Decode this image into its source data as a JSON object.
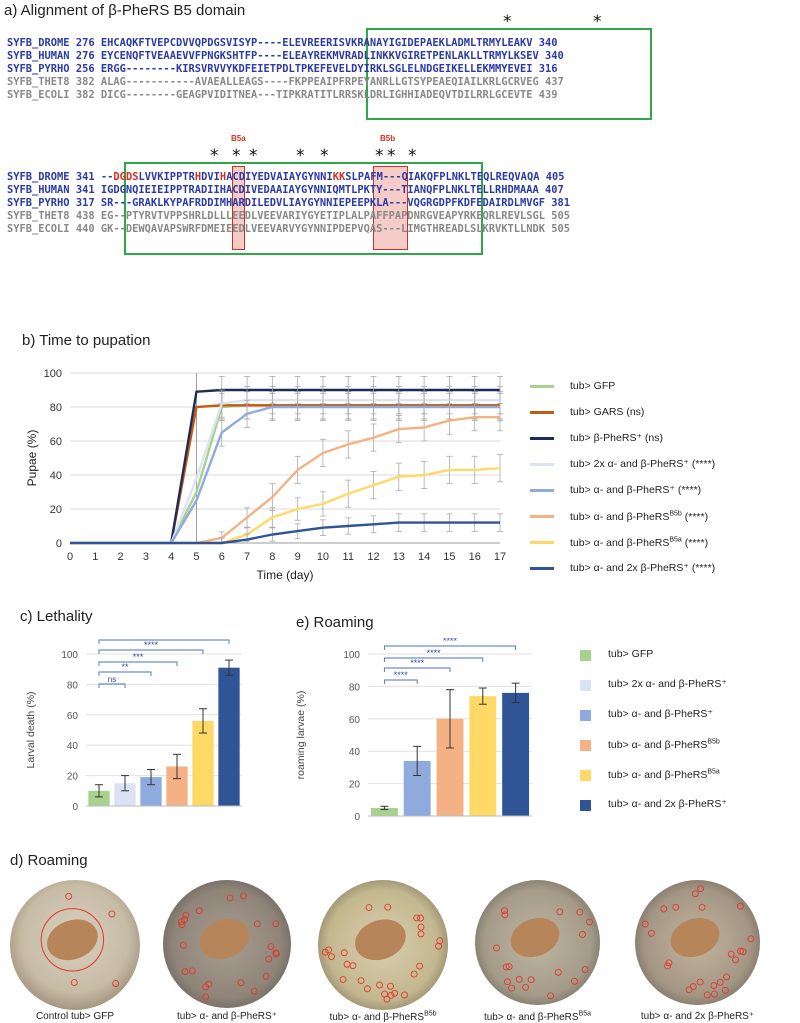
{
  "panel_a": {
    "title": "a) Alignment of β-PheRS B5 domain",
    "block1": [
      {
        "name": "SYFB_DROME",
        "start": "276",
        "seq": "EHCAQKFTVEPCDVVQPDGSVISYP----ELEVREERISVKRANAYIGIDEPAEKLADMLTRMYLEAKV",
        "end": "340",
        "color": "blue"
      },
      {
        "name": "SYFB_HUMAN",
        "start": "276",
        "seq": "EYCENQFTVEAAEVVFPNGKSHTFP----ELEAYREKMVRADLINKKVGIRETPENLAKLLTRMYLKSEV",
        "end": "340",
        "color": "blue"
      },
      {
        "name": "SYFB_PYRHO",
        "start": "256",
        "seq": "ERGG--------KIRSVRVVYKDFEIETPDLTPKEFEVELDYIRKLSGLELNDGEIKELLEKMMYEVEI",
        "end": "316",
        "color": "blue"
      },
      {
        "name": "SYFB_THET8",
        "start": "382",
        "seq": "ALAG-----------AVAEALLEAGS----FKPPEAIPFRPEYANRLLGTSYPEAEQIAILKRLGCRVEG",
        "end": "437",
        "color": "grey"
      },
      {
        "name": "SYFB_ECOLI",
        "start": "382",
        "seq": "DICG--------GEAGPVIDITNEA---TIPKRATITLRRSKLDRLIGHHIADEQVTDILRRLGCEVTE",
        "end": "439",
        "color": "grey"
      }
    ],
    "block2": [
      {
        "name": "SYFB_DROME",
        "start": "341",
        "seq": "--DGDSLVVKIPPTRHDVIHACDIYEDVAIAYGYNNIKKSLPAFM---QIAKQFPLNKLTEQLREQVAQA",
        "end": "405",
        "color": "blue"
      },
      {
        "name": "SYFB_HUMAN",
        "start": "341",
        "seq": "IGDGNQIEIEIPPTRADIIHACDIVEDAAIAYGYNNIQMTLPKTY---TIANQFPLNKLTELLRHDMAAA",
        "end": "407",
        "color": "blue"
      },
      {
        "name": "SYFB_PYRHO",
        "start": "317",
        "seq": "SR---GRAKLKYPAFRDDIMHARDILEDVLIAYGYNNIEPEEPKLA---VQGRGDPFKDFEDAIRDLMVGF",
        "end": "381",
        "color": "blue"
      },
      {
        "name": "SYFB_THET8",
        "start": "438",
        "seq": "EG--PTYRVTVPPSHRLDLLLEEDLVEEVARIYGYETIPLALPAFFPAPDNRGVEAPYRKEQRLREVLSGL",
        "end": "505",
        "color": "grey"
      },
      {
        "name": "SYFB_ECOLI",
        "start": "440",
        "seq": "GK--DEWQAVAPSWRFDMEIEEDLVEEVARVYGYNNIPDEPVQAS---LIMGTHREADLSLKRVKTLLNDK",
        "end": "505",
        "color": "grey"
      }
    ],
    "b5a_label": "B5a",
    "b5b_label": "B5b",
    "star": "*"
  },
  "panel_b": {
    "title": "b) Time to pupation",
    "chart_data": {
      "type": "line",
      "xlabel": "Time (day)",
      "ylabel": "Pupae (%)",
      "xlim": [
        0,
        17
      ],
      "ylim": [
        0,
        100
      ],
      "x": [
        0,
        1,
        2,
        3,
        4,
        5,
        6,
        7,
        8,
        9,
        10,
        11,
        12,
        13,
        14,
        15,
        16,
        17
      ],
      "series": [
        {
          "name": "tub> GFP",
          "color": "#a9d18e",
          "values": [
            0,
            0,
            0,
            0,
            0,
            30,
            80,
            81,
            81,
            81,
            81,
            81,
            81,
            81,
            81,
            81,
            81,
            81
          ]
        },
        {
          "name": "tub> GARS (ns)",
          "color": "#c55a11",
          "values": [
            0,
            0,
            0,
            0,
            0,
            80,
            81,
            81,
            81,
            81,
            81,
            81,
            81,
            81,
            81,
            81,
            81,
            81
          ]
        },
        {
          "name": "tub> β-PheRS⁺ (ns)",
          "color": "#1f2a5c",
          "values": [
            0,
            0,
            0,
            0,
            0,
            89,
            90,
            90,
            90,
            90,
            90,
            90,
            90,
            90,
            90,
            90,
            90,
            90
          ]
        },
        {
          "name": "tub> 2x α- and β-PheRS⁺ (****)",
          "color": "#dae3f3",
          "values": [
            0,
            0,
            0,
            0,
            0,
            38,
            82,
            84,
            84,
            84,
            84,
            84,
            84,
            84,
            84,
            84,
            84,
            84
          ]
        },
        {
          "name": "tub> α- and β-PheRS⁺ (****)",
          "color": "#8faadc",
          "values": [
            0,
            0,
            0,
            0,
            0,
            25,
            65,
            76,
            80,
            80,
            80,
            80,
            80,
            80,
            80,
            80,
            80,
            80
          ]
        },
        {
          "name": "tub> α- and β-PheRS^B5b (****)",
          "color": "#f4b183",
          "values": [
            0,
            0,
            0,
            0,
            0,
            0,
            3,
            15,
            27,
            43,
            53,
            58,
            62,
            67,
            68,
            72,
            74,
            74
          ]
        },
        {
          "name": "tub> α- and β-PheRS^B5a (****)",
          "color": "#ffd966",
          "values": [
            0,
            0,
            0,
            0,
            0,
            0,
            0,
            5,
            15,
            20,
            23,
            29,
            34,
            39,
            40,
            43,
            43,
            44
          ]
        },
        {
          "name": "tub> α- and 2x β-PheRS⁺ (****)",
          "color": "#2f5597",
          "values": [
            0,
            0,
            0,
            0,
            0,
            0,
            0,
            2,
            5,
            7,
            9,
            10,
            11,
            12,
            12,
            12,
            12,
            12
          ]
        }
      ]
    }
  },
  "panel_c": {
    "title": "c) Lethality",
    "chart_data": {
      "type": "bar",
      "ylabel": "Larval death (%)",
      "ylim": [
        0,
        100
      ],
      "categories": [
        "tub> GFP",
        "tub> 2x α- and β-PheRS⁺",
        "tub> α- and β-PheRS⁺",
        "tub> α- and β-PheRS^B5b",
        "tub> α- and β-PheRS^B5a",
        "tub> α- and 2x β-PheRS⁺"
      ],
      "values": [
        10,
        15,
        19,
        26,
        56,
        91
      ],
      "errors": [
        4,
        5,
        5,
        8,
        8,
        5
      ],
      "colors": [
        "#a9d18e",
        "#dae3f3",
        "#8faadc",
        "#f4b183",
        "#ffd966",
        "#2f5597"
      ],
      "significance": [
        "ns",
        "**",
        "***",
        "****",
        "****"
      ]
    }
  },
  "panel_e": {
    "title": "e) Roaming",
    "chart_data": {
      "type": "bar",
      "ylabel": "roaming larvae (%)",
      "ylim": [
        0,
        100
      ],
      "categories": [
        "tub> GFP",
        "tub> α- and β-PheRS⁺",
        "tub> α- and β-PheRS^B5b",
        "tub> α- and β-PheRS^B5a",
        "tub> α- and 2x β-PheRS⁺"
      ],
      "values": [
        5,
        34,
        60,
        74,
        76
      ],
      "errors": [
        1,
        9,
        18,
        5,
        6
      ],
      "colors": [
        "#a9d18e",
        "#8faadc",
        "#f4b183",
        "#ffd966",
        "#2f5597"
      ],
      "significance": [
        "****",
        "****",
        "****",
        "****"
      ]
    }
  },
  "bar_legend": [
    {
      "label": "tub> GFP",
      "color": "#a9d18e"
    },
    {
      "label": "tub> 2x α- and β-PheRS⁺",
      "color": "#dae3f3"
    },
    {
      "label": "tub> α- and β-PheRS⁺",
      "color": "#8faadc"
    },
    {
      "label": "tub> α- and β-PheRS^B5b",
      "color": "#f4b183"
    },
    {
      "label": "tub> α- and β-PheRS^B5a",
      "color": "#ffd966"
    },
    {
      "label": "tub> α- and 2x β-PheRS⁺",
      "color": "#2f5597"
    }
  ],
  "panel_d": {
    "title": "d) Roaming",
    "captions": [
      "Control tub> GFP",
      "tub> α- and β-PheRS⁺",
      "tub> α- and β-PheRS^B5b",
      "tub> α- and β-PheRS^B5a",
      "tub> α- and 2x β-PheRS⁺"
    ]
  }
}
